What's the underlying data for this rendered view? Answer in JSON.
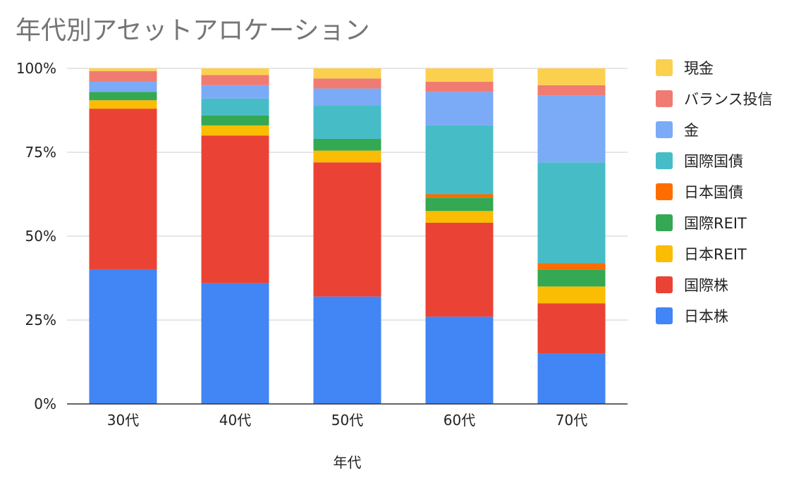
{
  "title": "年代別アセットアロケーション",
  "chart_data": {
    "type": "bar",
    "stacked": true,
    "percent_stacked": true,
    "title": "年代別アセットアロケーション",
    "xlabel": "年代",
    "ylabel": "",
    "categories": [
      "30代",
      "40代",
      "50代",
      "60代",
      "70代"
    ],
    "y_ticks": [
      "0%",
      "25%",
      "50%",
      "75%",
      "100%"
    ],
    "ylim": [
      0,
      100
    ],
    "grid": true,
    "legend_position": "right",
    "series": [
      {
        "name": "日本株",
        "color": "#4285F4",
        "values": [
          40,
          36,
          32,
          26,
          15
        ]
      },
      {
        "name": "国際株",
        "color": "#EA4335",
        "values": [
          48,
          44,
          40,
          28,
          15
        ]
      },
      {
        "name": "日本REIT",
        "color": "#FBBC04",
        "values": [
          2.5,
          3,
          3.5,
          3.5,
          5
        ]
      },
      {
        "name": "国際REIT",
        "color": "#34A853",
        "values": [
          2.5,
          3,
          3.5,
          4,
          5
        ]
      },
      {
        "name": "日本国債",
        "color": "#FF6D01",
        "values": [
          0,
          0,
          0,
          1,
          2
        ]
      },
      {
        "name": "国際国債",
        "color": "#46BDC6",
        "values": [
          0,
          5,
          10,
          20.5,
          30
        ]
      },
      {
        "name": "金",
        "color": "#7BAAF7",
        "values": [
          3,
          4,
          5,
          10,
          20
        ]
      },
      {
        "name": "バランス投信",
        "color": "#F07B72",
        "values": [
          3.2,
          3,
          3,
          3,
          3
        ]
      },
      {
        "name": "現金",
        "color": "#FCD04F",
        "values": [
          0.8,
          2,
          3,
          4,
          5
        ]
      }
    ]
  }
}
